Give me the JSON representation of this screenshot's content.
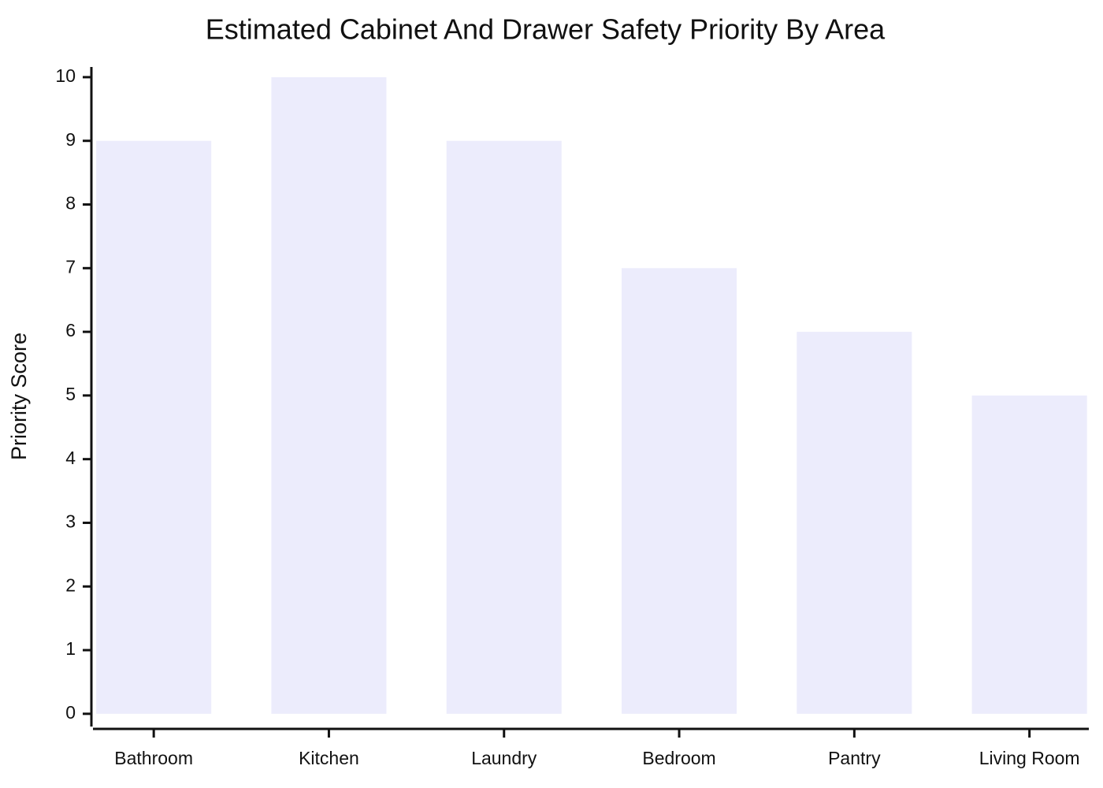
{
  "chart_data": {
    "type": "bar",
    "title": "Estimated Cabinet And Drawer Safety Priority By Area",
    "y_label": "Priority Score",
    "categories": [
      "Bathroom",
      "Kitchen",
      "Laundry",
      "Bedroom",
      "Pantry",
      "Living Room"
    ],
    "values": [
      9,
      10,
      9,
      7,
      6,
      5
    ],
    "color": "#ececfc",
    "ylim": [
      -0.2,
      10.16
    ],
    "yticks": [
      0,
      1,
      2,
      3,
      4,
      5,
      6,
      7,
      8,
      9,
      10
    ],
    "grid": false
  }
}
